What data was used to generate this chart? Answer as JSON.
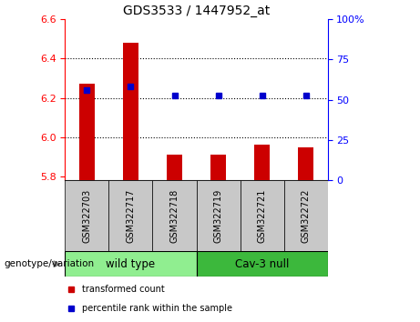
{
  "title": "GDS3533 / 1447952_at",
  "samples": [
    "GSM322703",
    "GSM322717",
    "GSM322718",
    "GSM322719",
    "GSM322721",
    "GSM322722"
  ],
  "red_values": [
    6.27,
    6.48,
    5.91,
    5.91,
    5.96,
    5.95
  ],
  "blue_values": [
    6.24,
    6.26,
    6.21,
    6.21,
    6.21,
    6.21
  ],
  "ylim_left": [
    5.78,
    6.6
  ],
  "ylim_right": [
    0,
    100
  ],
  "yticks_left": [
    5.8,
    6.0,
    6.2,
    6.4,
    6.6
  ],
  "yticks_right": [
    0,
    25,
    50,
    75,
    100
  ],
  "ytick_labels_right": [
    "0",
    "25",
    "50",
    "75",
    "100%"
  ],
  "bar_color": "#cc0000",
  "dot_color": "#0000cc",
  "tick_area_color": "#c8c8c8",
  "wt_label": "wild type",
  "cav_label": "Cav-3 null",
  "wt_color": "#90ee90",
  "cav_color": "#3cb83c",
  "legend_red": "transformed count",
  "legend_blue": "percentile rank within the sample",
  "genotype_label": "genotype/variation",
  "bar_width": 0.35,
  "grid_ticks": [
    6.0,
    6.2,
    6.4
  ]
}
